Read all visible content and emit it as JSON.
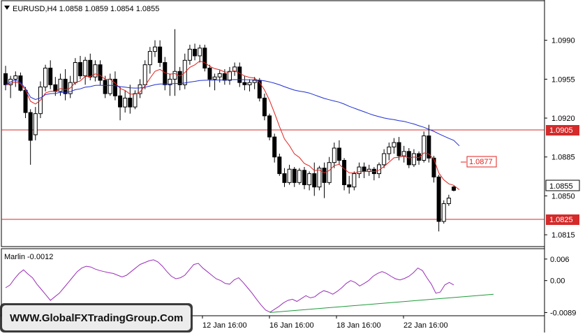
{
  "window": {
    "symbol_line": "EURUSD,H4  1.0858 1.0859 1.0854 1.0855",
    "menu_icon": "triangle-down-icon"
  },
  "main_axis": {
    "ticks": [
      "1.0990",
      "1.0955",
      "1.0920",
      "1.0885",
      "1.0850",
      "1.0815"
    ],
    "current_price_label": "1.0855",
    "level_high_label": "1.0905",
    "level_low_label": "1.0825",
    "annotation_label": "1.0877"
  },
  "indicator": {
    "label": "Marlin -0.0012",
    "ticks": [
      "0.006",
      "0.00",
      "-0.0089"
    ]
  },
  "time_axis": {
    "labels": [
      "12 Jan 16:00",
      "16 Jan 16:00",
      "18 Jan 16:00",
      "22 Jan 16:00"
    ]
  },
  "watermark": {
    "text": "WWW.GlobalFXTradingGroup.Com"
  },
  "colors": {
    "bull_candle": "#ffffff",
    "bear_candle": "#000000",
    "ma_red": "#e0201c",
    "ma_blue": "#1f2fd0",
    "level_line": "#d42a2a",
    "oscillator": "#9a2fb8",
    "trendline": "#1e9a3a"
  },
  "chart_data": [
    {
      "type": "candlestick",
      "symbol": "EURUSD",
      "timeframe": "H4",
      "ylim": [
        1.0805,
        1.1025
      ],
      "horizontal_levels": [
        1.0905,
        1.0825
      ],
      "annotation_level": 1.0877,
      "last_price": 1.0855,
      "candles": [
        [
          1.096,
          1.0967,
          1.0945,
          1.095
        ],
        [
          1.095,
          1.0958,
          1.0938,
          1.0955
        ],
        [
          1.0955,
          1.0962,
          1.0948,
          1.0958
        ],
        [
          1.0958,
          1.0961,
          1.0944,
          1.0945
        ],
        [
          1.0945,
          1.0948,
          1.092,
          1.0925
        ],
        [
          1.0925,
          1.0928,
          1.0878,
          1.09
        ],
        [
          1.0905,
          1.093,
          1.09,
          1.0924
        ],
        [
          1.0924,
          1.0953,
          1.092,
          1.0948
        ],
        [
          1.0948,
          1.0968,
          1.0944,
          1.0965
        ],
        [
          1.0965,
          1.0972,
          1.0946,
          1.095
        ],
        [
          1.095,
          1.0957,
          1.094,
          1.0944
        ],
        [
          1.0944,
          1.096,
          1.094,
          1.0955
        ],
        [
          1.0955,
          1.0964,
          1.0936,
          1.0942
        ],
        [
          1.0942,
          1.0958,
          1.0938,
          1.0952
        ],
        [
          1.0952,
          1.0974,
          1.095,
          1.097
        ],
        [
          1.097,
          1.0976,
          1.0955,
          1.0958
        ],
        [
          1.0958,
          1.0975,
          1.095,
          1.0972
        ],
        [
          1.0972,
          1.0978,
          1.0954,
          1.0957
        ],
        [
          1.0957,
          1.0972,
          1.0953,
          1.0968
        ],
        [
          1.0968,
          1.0972,
          1.095,
          1.0954
        ],
        [
          1.0954,
          1.0958,
          1.0938,
          1.0942
        ],
        [
          1.0942,
          1.096,
          1.094,
          1.0955
        ],
        [
          1.0955,
          1.0962,
          1.0936,
          1.094
        ],
        [
          1.094,
          1.0948,
          1.0918,
          1.093
        ],
        [
          1.093,
          1.0945,
          1.0925,
          1.0938
        ],
        [
          1.0938,
          1.095,
          1.0924,
          1.093
        ],
        [
          1.093,
          1.0945,
          1.0928,
          1.0942
        ],
        [
          1.0942,
          1.0955,
          1.0938,
          1.095
        ],
        [
          1.095,
          1.0972,
          1.0946,
          1.0968
        ],
        [
          1.0968,
          1.0984,
          1.096,
          1.098
        ],
        [
          1.098,
          1.099,
          1.0975,
          1.0984
        ],
        [
          1.0984,
          1.099,
          1.0966,
          1.097
        ],
        [
          1.097,
          1.0975,
          1.0945,
          1.095
        ],
        [
          1.095,
          1.096,
          1.094,
          1.0955
        ],
        [
          1.0955,
          1.1,
          1.094,
          1.0962
        ],
        [
          1.0962,
          1.0966,
          1.0945,
          1.095
        ],
        [
          1.095,
          1.0978,
          1.0946,
          1.0972
        ],
        [
          1.0972,
          1.0986,
          1.0968,
          1.0982
        ],
        [
          1.0982,
          1.0987,
          1.0972,
          1.0976
        ],
        [
          1.0976,
          1.0986,
          1.097,
          1.0983
        ],
        [
          1.0983,
          1.0986,
          1.0962,
          1.0965
        ],
        [
          1.0965,
          1.0968,
          1.0948,
          1.0955
        ],
        [
          1.0955,
          1.096,
          1.0945,
          1.0957
        ],
        [
          1.0957,
          1.0963,
          1.0952,
          1.096
        ],
        [
          1.096,
          1.0964,
          1.095,
          1.0954
        ],
        [
          1.0954,
          1.0966,
          1.095,
          1.0962
        ],
        [
          1.0962,
          1.097,
          1.0958,
          1.0966
        ],
        [
          1.0966,
          1.097,
          1.0948,
          1.0952
        ],
        [
          1.0952,
          1.0958,
          1.0945,
          1.095
        ],
        [
          1.095,
          1.0955,
          1.0944,
          1.0952
        ],
        [
          1.0952,
          1.0957,
          1.0946,
          1.0954
        ],
        [
          1.0954,
          1.0956,
          1.0935,
          1.0938
        ],
        [
          1.0938,
          1.0942,
          1.0918,
          1.0922
        ],
        [
          1.0922,
          1.0924,
          1.09,
          1.0903
        ],
        [
          1.0903,
          1.0906,
          1.088,
          1.0885
        ],
        [
          1.0885,
          1.0888,
          1.0868,
          1.087
        ],
        [
          1.087,
          1.0875,
          1.0858,
          1.0862
        ],
        [
          1.0862,
          1.0878,
          1.086,
          1.0874
        ],
        [
          1.0874,
          1.0876,
          1.0858,
          1.0862
        ],
        [
          1.0862,
          1.0875,
          1.086,
          1.0873
        ],
        [
          1.0873,
          1.0876,
          1.0856,
          1.086
        ],
        [
          1.086,
          1.0872,
          1.0855,
          1.087
        ],
        [
          1.087,
          1.088,
          1.085,
          1.0858
        ],
        [
          1.0858,
          1.0877,
          1.0855,
          1.0875
        ],
        [
          1.0875,
          1.088,
          1.0848,
          1.0862
        ],
        [
          1.0862,
          1.0885,
          1.086,
          1.088
        ],
        [
          1.088,
          1.0898,
          1.0875,
          1.0893
        ],
        [
          1.0893,
          1.09,
          1.0878,
          1.0882
        ],
        [
          1.0882,
          1.0884,
          1.0855,
          1.086
        ],
        [
          1.086,
          1.0868,
          1.0852,
          1.0858
        ],
        [
          1.0858,
          1.0872,
          1.0855,
          1.087
        ],
        [
          1.087,
          1.088,
          1.0866,
          1.0876
        ],
        [
          1.0876,
          1.088,
          1.0866,
          1.0872
        ],
        [
          1.0872,
          1.0878,
          1.0868,
          1.0874
        ],
        [
          1.0874,
          1.0876,
          1.0864,
          1.087
        ],
        [
          1.087,
          1.088,
          1.0866,
          1.0878
        ],
        [
          1.0878,
          1.0892,
          1.0875,
          1.0888
        ],
        [
          1.0888,
          1.0898,
          1.0882,
          1.0894
        ],
        [
          1.0894,
          1.0902,
          1.0888,
          1.0898
        ],
        [
          1.0898,
          1.0903,
          1.0882,
          1.0886
        ],
        [
          1.0886,
          1.0895,
          1.088,
          1.089
        ],
        [
          1.089,
          1.0893,
          1.0875,
          1.0878
        ],
        [
          1.0878,
          1.0892,
          1.0876,
          1.0888
        ],
        [
          1.0888,
          1.089,
          1.0878,
          1.0882
        ],
        [
          1.0882,
          1.0908,
          1.088,
          1.0904
        ],
        [
          1.0904,
          1.0914,
          1.088,
          1.0884
        ],
        [
          1.0884,
          1.0886,
          1.0862,
          1.0867
        ],
        [
          1.0867,
          1.0869,
          1.0818,
          1.0827
        ],
        [
          1.0827,
          1.0846,
          1.0825,
          1.0843
        ],
        [
          1.0843,
          1.0851,
          1.0841,
          1.0848
        ],
        [
          1.0858,
          1.0859,
          1.0854,
          1.0855
        ]
      ]
    },
    {
      "type": "line",
      "name": "Marlin",
      "value": -0.0012,
      "ylim": [
        -0.0094,
        0.0085
      ],
      "ticks": [
        0.006,
        0.0,
        -0.0089
      ],
      "values": [
        -0.002,
        -0.0012,
        0.0005,
        0.002,
        0.003,
        0.0018,
        0.0008,
        -0.001,
        -0.0025,
        -0.004,
        -0.0055,
        -0.0045,
        -0.0035,
        -0.002,
        -0.0005,
        0.001,
        0.0025,
        0.0035,
        0.004,
        0.0038,
        0.0032,
        0.0028,
        0.0025,
        0.0022,
        0.002,
        0.0015,
        0.001,
        0.0015,
        0.0025,
        0.0035,
        0.0045,
        0.005,
        0.0055,
        0.0058,
        0.0052,
        0.004,
        0.0025,
        0.0012,
        0.0005,
        0.0008,
        0.0015,
        0.003,
        0.0045,
        0.0048,
        0.0035,
        0.0025,
        0.0015,
        0.0005,
        0.0,
        -0.0008,
        -0.001,
        0.0002,
        0.0008,
        -0.0005,
        -0.002,
        -0.0035,
        -0.0052,
        -0.0068,
        -0.0082,
        -0.0088,
        -0.008,
        -0.0072,
        -0.0062,
        -0.0055,
        -0.0052,
        -0.0058,
        -0.005,
        -0.0042,
        -0.0048,
        -0.0045,
        -0.0035,
        -0.0028,
        -0.0032,
        -0.0038,
        -0.003,
        -0.002,
        -0.0008,
        0.0,
        -0.0005,
        -0.0015,
        -0.0008,
        0.0,
        0.0012,
        0.002,
        0.0025,
        0.002,
        0.0012,
        0.0005,
        0.0002,
        0.0006,
        0.0012,
        0.0022,
        0.0035,
        0.0028,
        0.0008,
        -0.001,
        -0.0035,
        -0.0032,
        -0.0012,
        -0.0005,
        -0.0012
      ],
      "trendline": {
        "from": -0.0089,
        "to": -0.0038
      }
    }
  ]
}
